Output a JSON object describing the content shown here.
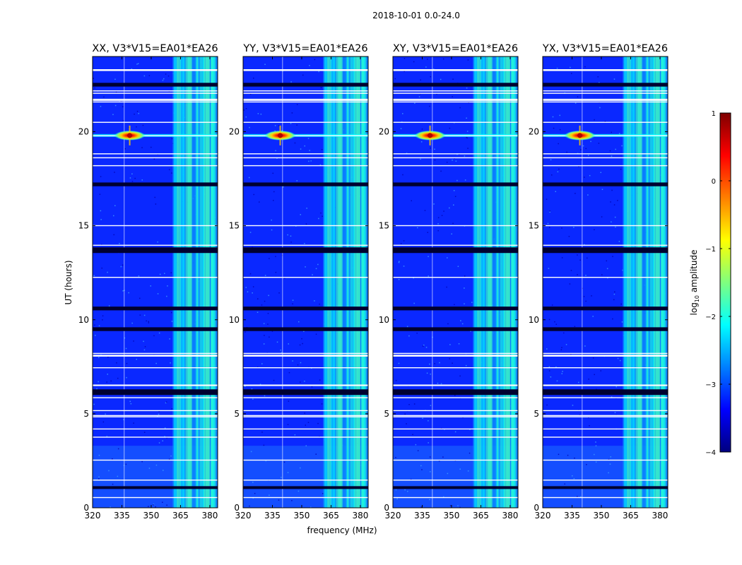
{
  "chart_data": {
    "type": "heatmap",
    "title": "2018-10-01 0.0-24.0",
    "xlabel": "frequency (MHz)",
    "ylabel": "UT (hours)",
    "xlim": [
      320,
      384
    ],
    "ylim": [
      0,
      24
    ],
    "xticks": [
      "320",
      "335",
      "350",
      "365",
      "380"
    ],
    "xtick_values": [
      320,
      335,
      350,
      365,
      380
    ],
    "yticks": [
      "0",
      "5",
      "10",
      "15",
      "20"
    ],
    "ytick_values": [
      0,
      5,
      10,
      15,
      20
    ],
    "panels": [
      {
        "title": "XX, V3*V15=EA01*EA26",
        "pol": "XX"
      },
      {
        "title": "YY, V3*V15=EA01*EA26",
        "pol": "YY"
      },
      {
        "title": "XY, V3*V15=EA01*EA26",
        "pol": "XY"
      },
      {
        "title": "YX, V3*V15=EA01*EA26",
        "pol": "YX"
      }
    ],
    "colorbar": {
      "label": "log10 amplitude",
      "range": [
        -4,
        1
      ],
      "ticks": [
        "1",
        "0",
        "−1",
        "−2",
        "−3",
        "−4"
      ],
      "tick_values": [
        1,
        0,
        -1,
        -2,
        -3,
        -4
      ],
      "colormap": [
        "#00007f",
        "#0000ff",
        "#007fff",
        "#00ffff",
        "#7fff7f",
        "#ffff00",
        "#ff7f00",
        "#ff0000",
        "#7f0000"
      ]
    },
    "rfi_band_mhz": [
      361,
      384
    ],
    "hot_spot": {
      "freq_mhz": 339,
      "ut_hours": 19.8,
      "log10_amp": 0.8
    },
    "flagged_ut_hours": [
      1.1,
      3.3,
      3.5,
      5.9,
      9.5,
      13.7,
      17.2,
      22.5
    ]
  }
}
